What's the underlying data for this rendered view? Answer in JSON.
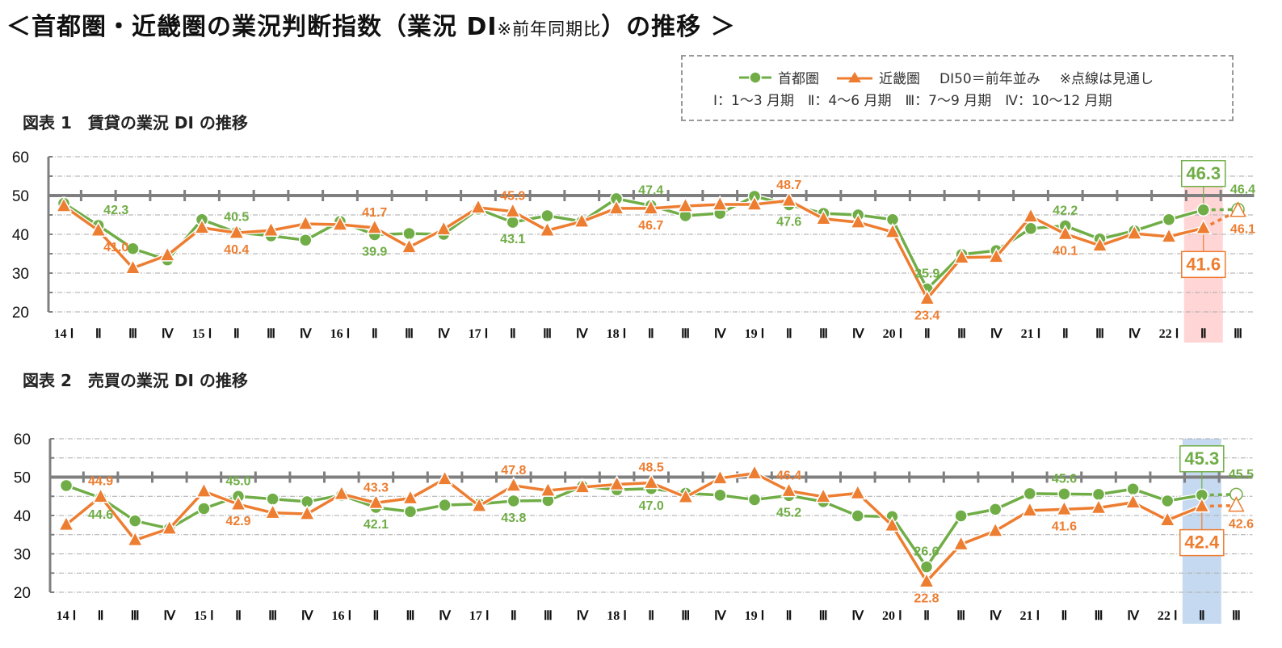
{
  "header": {
    "title_main": "＜首都圏・近畿圏の業況判断指数（業況 DI",
    "title_small": "※前年同期比",
    "title_end": "）の推移 ＞"
  },
  "legend": {
    "series1": "首都圏",
    "series2": "近畿圏",
    "di50_note": "DI50＝前年並み",
    "dotted_note": "※点線は見通し",
    "quarters_note": "Ⅰ：1～3 月期　Ⅱ：4～6 月期　Ⅲ：7～9 月期　Ⅳ：10～12 月期"
  },
  "colors": {
    "series1": "#70AD47",
    "series2": "#ED7D31",
    "highlight1": "#FFD5D5",
    "highlight2": "#C5DAF0",
    "axis": "#7F7F7F"
  },
  "chart_data": [
    {
      "type": "line",
      "title": "図表 1　賃貸の業況 DI の推移",
      "categories": [
        "14 Ⅰ",
        "Ⅱ",
        "Ⅲ",
        "Ⅳ",
        "15 Ⅰ",
        "Ⅱ",
        "Ⅲ",
        "Ⅳ",
        "16 Ⅰ",
        "Ⅱ",
        "Ⅲ",
        "Ⅳ",
        "17 Ⅰ",
        "Ⅱ",
        "Ⅲ",
        "Ⅳ",
        "18 Ⅰ",
        "Ⅱ",
        "Ⅲ",
        "Ⅳ",
        "19 Ⅰ",
        "Ⅱ",
        "Ⅲ",
        "Ⅳ",
        "20 Ⅰ",
        "Ⅱ",
        "Ⅲ",
        "Ⅳ",
        "21 Ⅰ",
        "Ⅱ",
        "Ⅲ",
        "Ⅳ",
        "22 Ⅰ",
        "Ⅱ",
        "Ⅲ"
      ],
      "ylim": [
        20,
        60
      ],
      "yticks": [
        "20",
        "30",
        "40",
        "50",
        "60"
      ],
      "reference_line": 50,
      "grid": true,
      "highlight_category_index": 33,
      "forecast_from_index": 33,
      "series": [
        {
          "name": "首都圏",
          "marker": "circle",
          "values": [
            48.0,
            42.3,
            36.3,
            33.4,
            43.8,
            40.5,
            39.6,
            38.5,
            43.3,
            39.9,
            40.2,
            40.0,
            46.5,
            43.1,
            44.8,
            43.3,
            49.2,
            47.4,
            44.8,
            45.4,
            49.8,
            47.6,
            45.4,
            45.0,
            43.8,
            25.9,
            34.8,
            35.8,
            41.5,
            42.2,
            38.8,
            40.9,
            43.8,
            46.3,
            46.4
          ],
          "labels": {
            "1": "42.3",
            "5": "40.5",
            "9": "39.9",
            "13": "43.1",
            "17": "47.4",
            "21": "47.6",
            "25": "25.9",
            "29": "42.2",
            "33": "46.3",
            "34": "46.4"
          }
        },
        {
          "name": "近畿圏",
          "marker": "triangle",
          "values": [
            47.3,
            41.0,
            31.3,
            34.6,
            41.7,
            40.4,
            41.0,
            42.7,
            42.5,
            41.7,
            36.7,
            41.3,
            46.9,
            45.9,
            41.0,
            43.3,
            46.7,
            46.7,
            47.3,
            47.7,
            47.7,
            48.7,
            44.0,
            43.1,
            40.6,
            23.4,
            34.0,
            34.2,
            44.6,
            40.1,
            37.1,
            40.2,
            39.4,
            41.6,
            46.1
          ],
          "labels": {
            "1": "41.0",
            "5": "40.4",
            "9": "41.7",
            "13": "45.9",
            "17": "46.7",
            "21": "48.7",
            "25": "23.4",
            "29": "40.1",
            "33": "41.6",
            "34": "46.1"
          }
        }
      ]
    },
    {
      "type": "line",
      "title": "図表 2　売買の業況 DI の推移",
      "categories": [
        "14 Ⅰ",
        "Ⅱ",
        "Ⅲ",
        "Ⅳ",
        "15 Ⅰ",
        "Ⅱ",
        "Ⅲ",
        "Ⅳ",
        "16 Ⅰ",
        "Ⅱ",
        "Ⅲ",
        "Ⅳ",
        "17 Ⅰ",
        "Ⅱ",
        "Ⅲ",
        "Ⅳ",
        "18 Ⅰ",
        "Ⅱ",
        "Ⅲ",
        "Ⅳ",
        "19 Ⅰ",
        "Ⅱ",
        "Ⅲ",
        "Ⅳ",
        "20 Ⅰ",
        "Ⅱ",
        "Ⅲ",
        "Ⅳ",
        "21 Ⅰ",
        "Ⅱ",
        "Ⅲ",
        "Ⅳ",
        "22 Ⅰ",
        "Ⅱ",
        "Ⅲ"
      ],
      "ylim": [
        20,
        60
      ],
      "yticks": [
        "20",
        "30",
        "40",
        "50",
        "60"
      ],
      "reference_line": 50,
      "grid": true,
      "highlight_category_index": 33,
      "forecast_from_index": 33,
      "series": [
        {
          "name": "首都圏",
          "marker": "circle",
          "values": [
            47.8,
            44.6,
            38.6,
            36.6,
            41.8,
            45.0,
            44.3,
            43.6,
            45.3,
            42.1,
            41.0,
            42.7,
            43.0,
            43.8,
            43.9,
            47.6,
            46.7,
            47.0,
            45.8,
            45.3,
            44.1,
            45.2,
            43.6,
            39.9,
            39.7,
            26.6,
            39.9,
            41.6,
            45.7,
            45.6,
            45.5,
            46.9,
            43.8,
            45.3,
            45.5
          ],
          "labels": {
            "1": "44.6",
            "5": "45.0",
            "9": "42.1",
            "13": "43.8",
            "17": "47.0",
            "21": "45.2",
            "25": "26.6",
            "29": "45.6",
            "33": "45.3",
            "34": "45.5"
          }
        },
        {
          "name": "近畿圏",
          "marker": "triangle",
          "values": [
            37.6,
            44.9,
            33.6,
            36.6,
            46.3,
            42.9,
            40.7,
            40.4,
            45.6,
            43.3,
            44.5,
            49.5,
            42.5,
            47.8,
            46.5,
            47.4,
            48.1,
            48.5,
            44.8,
            49.7,
            51.0,
            46.4,
            44.9,
            45.8,
            37.4,
            22.8,
            32.5,
            36.0,
            41.3,
            41.6,
            42.0,
            43.4,
            38.8,
            42.4,
            42.6
          ],
          "labels": {
            "1": "44.9",
            "5": "42.9",
            "9": "43.3",
            "13": "47.8",
            "17": "48.5",
            "21": "46.4",
            "25": "22.8",
            "29": "41.6",
            "33": "42.4",
            "34": "42.6"
          }
        }
      ]
    }
  ]
}
